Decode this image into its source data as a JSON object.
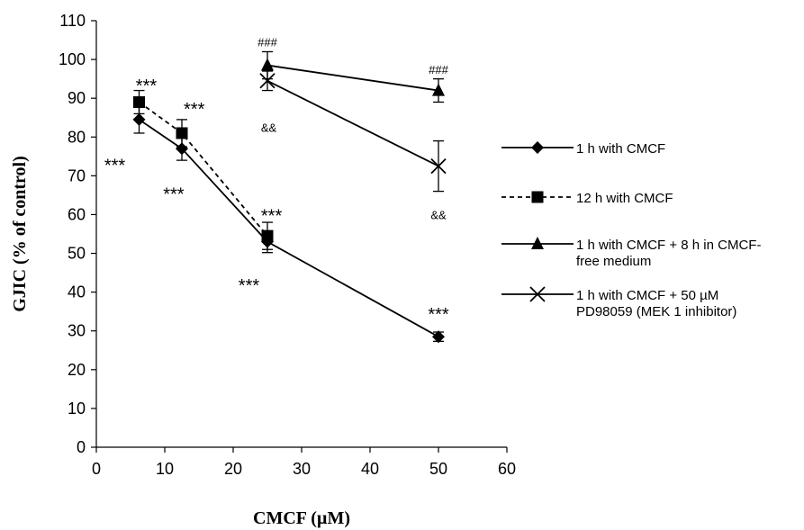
{
  "chart_data": {
    "type": "line",
    "xlabel": "CMCF (µM)",
    "ylabel": "GJIC (% of control)",
    "xlim": [
      0,
      60
    ],
    "ylim": [
      0,
      110
    ],
    "xticks": [
      "0",
      "10",
      "20",
      "30",
      "40",
      "50",
      "60"
    ],
    "yticks": [
      "0",
      "10",
      "20",
      "30",
      "40",
      "50",
      "60",
      "70",
      "80",
      "90",
      "100",
      "110"
    ],
    "grid": false,
    "legend_position": "right",
    "series": [
      {
        "name": "1 h with CMCF",
        "marker": "diamond",
        "dash": "solid",
        "points": [
          {
            "x": 6.25,
            "y": 84.5,
            "err": 3.5
          },
          {
            "x": 12.5,
            "y": 77,
            "err": 3
          },
          {
            "x": 25,
            "y": 53,
            "err": 2.8
          },
          {
            "x": 50,
            "y": 28.5,
            "err": 1.2
          }
        ]
      },
      {
        "name": "12 h with CMCF",
        "marker": "square",
        "dash": "dashed",
        "points": [
          {
            "x": 6.25,
            "y": 89,
            "err": 3
          },
          {
            "x": 12.5,
            "y": 81,
            "err": 3.5
          },
          {
            "x": 25,
            "y": 54.5,
            "err": 3.5
          }
        ]
      },
      {
        "name": "1 h with CMCF + 8 h in CMCF-free medium",
        "marker": "triangle",
        "dash": "solid",
        "points": [
          {
            "x": 25,
            "y": 98.5,
            "err": 3.5
          },
          {
            "x": 50,
            "y": 92,
            "err": 3
          }
        ]
      },
      {
        "name": "1 h with CMCF + 50 µM PD98059 (MEK 1 inhibitor)",
        "marker": "x",
        "dash": "solid",
        "points": [
          {
            "x": 25,
            "y": 94.5,
            "err": 2.5
          },
          {
            "x": 50,
            "y": 72.5,
            "err": 6.5
          }
        ]
      }
    ],
    "legend_labels": [
      [
        "1 h with CMCF"
      ],
      [
        "12 h with CMCF"
      ],
      [
        "1 h with CMCF + 8 h in CMCF-",
        "free medium"
      ],
      [
        "1 h with CMCF + 50 µM",
        "PD98059 (MEK 1 inhibitor)"
      ]
    ],
    "annotations": [
      {
        "text": "***",
        "x": 7.3,
        "y": 94
      },
      {
        "text": "***",
        "x": 14.3,
        "y": 88
      },
      {
        "text": "***",
        "x": 2.7,
        "y": 73.5
      },
      {
        "text": "***",
        "x": 11.3,
        "y": 66
      },
      {
        "text": "***",
        "x": 25.6,
        "y": 60.5
      },
      {
        "text": "***",
        "x": 22.3,
        "y": 42.5
      },
      {
        "text": "***",
        "x": 50,
        "y": 35
      },
      {
        "text": "###",
        "x": 25,
        "y": 104.5
      },
      {
        "text": "###",
        "x": 50,
        "y": 97.5
      },
      {
        "text": "&&",
        "x": 25.2,
        "y": 82.5
      },
      {
        "text": "&&",
        "x": 50,
        "y": 60
      }
    ]
  }
}
